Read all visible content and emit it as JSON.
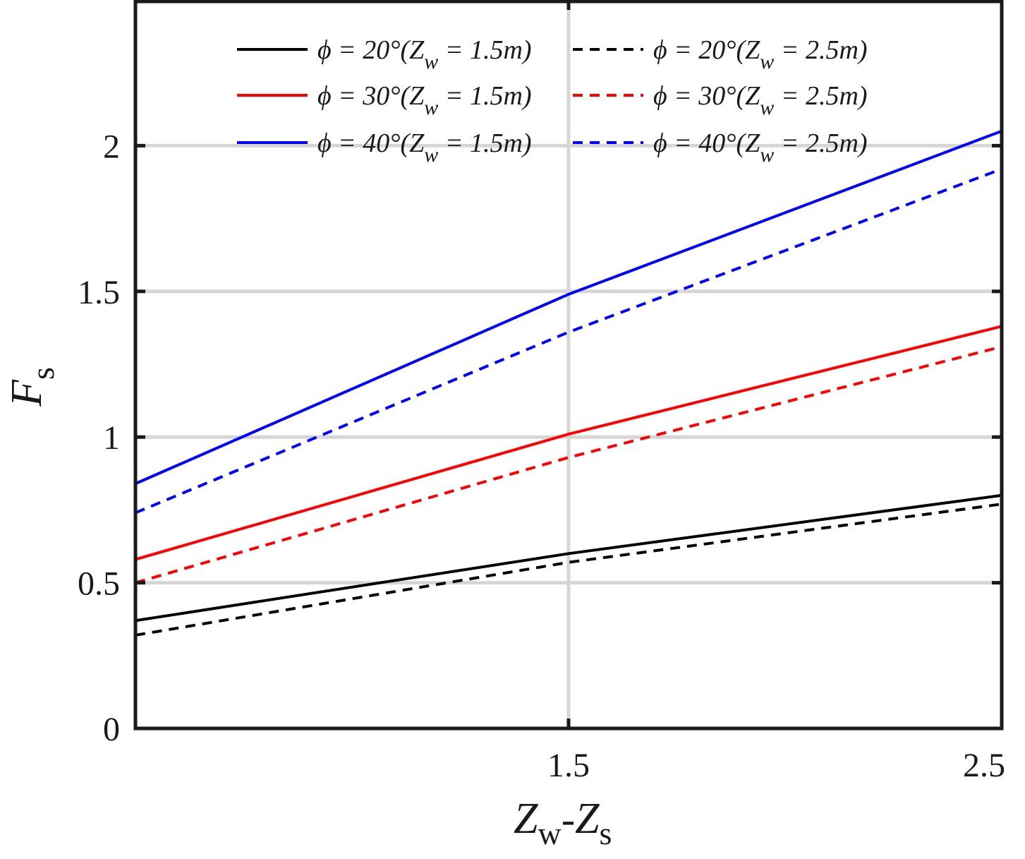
{
  "chart_data": {
    "type": "line",
    "title": "",
    "xlabel": {
      "main": "Z",
      "sub1": "w",
      "dash": "-",
      "main2": "Z",
      "sub2": "s"
    },
    "ylabel": {
      "main": "F",
      "sub": "s"
    },
    "xlim": [
      0.5,
      2.5
    ],
    "ylim": [
      0,
      2.5
    ],
    "grid": true,
    "legend_position": "top",
    "x_ticks": [
      {
        "value": 1.5,
        "label": "1.5"
      },
      {
        "value": 2.5,
        "label": "2.5"
      }
    ],
    "y_ticks": [
      {
        "value": 0,
        "label": "0"
      },
      {
        "value": 0.5,
        "label": "0.5"
      },
      {
        "value": 1,
        "label": "1"
      },
      {
        "value": 1.5,
        "label": "1.5"
      },
      {
        "value": 2,
        "label": "2"
      }
    ],
    "x": [
      0.5,
      1.5,
      2.5
    ],
    "series": [
      {
        "name": "φ = 20°(Z_w = 1.5m)",
        "phi": "20°",
        "zw": "1.5m",
        "color": "#000000",
        "dashed": false,
        "values": [
          0.37,
          0.6,
          0.8
        ]
      },
      {
        "name": "φ = 20°(Z_w = 2.5m)",
        "phi": "20°",
        "zw": "2.5m",
        "color": "#000000",
        "dashed": true,
        "values": [
          0.32,
          0.57,
          0.77
        ]
      },
      {
        "name": "φ = 30°(Z_w = 1.5m)",
        "phi": "30°",
        "zw": "1.5m",
        "color": "#ff0000",
        "dashed": false,
        "values": [
          0.58,
          1.01,
          1.38
        ]
      },
      {
        "name": "φ = 30°(Z_w = 2.5m)",
        "phi": "30°",
        "zw": "2.5m",
        "color": "#ff0000",
        "dashed": true,
        "values": [
          0.5,
          0.93,
          1.31
        ]
      },
      {
        "name": "φ = 40°(Z_w = 1.5m)",
        "phi": "40°",
        "zw": "1.5m",
        "color": "#0000ff",
        "dashed": false,
        "values": [
          0.84,
          1.49,
          2.05
        ]
      },
      {
        "name": "φ = 40°(Z_w = 2.5m)",
        "phi": "40°",
        "zw": "2.5m",
        "color": "#0000ff",
        "dashed": true,
        "values": [
          0.74,
          1.36,
          1.92
        ]
      }
    ]
  }
}
